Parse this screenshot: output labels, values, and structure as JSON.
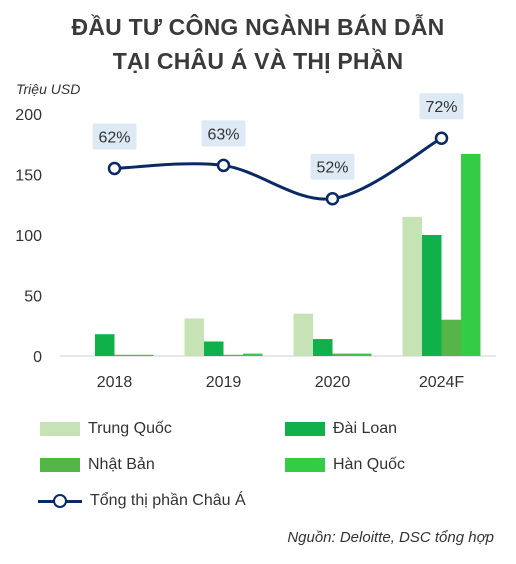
{
  "title_line1": "ĐẦU TƯ CÔNG NGÀNH BÁN DẪN",
  "title_line2": "TẠI CHÂU Á VÀ THỊ PHẦN",
  "source": "Nguồn: Deloitte, DSC tổng hợp",
  "chart_data": {
    "type": "bar",
    "title": "ĐẦU TƯ CÔNG NGÀNH BÁN DẪN TẠI CHÂU Á VÀ THỊ PHẦN",
    "ylabel": "Triệu USD",
    "ylim": [
      0,
      200
    ],
    "yticks": [
      0,
      50,
      100,
      150,
      200
    ],
    "grid": false,
    "legend_position": "bottom",
    "categories": [
      "2018",
      "2019",
      "2020",
      "2024F"
    ],
    "series": [
      {
        "name": "Trung Quốc",
        "type": "bar",
        "color": "#c6e3b5",
        "values": [
          0,
          31,
          35,
          115
        ]
      },
      {
        "name": "Đài Loan",
        "type": "bar",
        "color": "#10b14b",
        "values": [
          18,
          12,
          14,
          100
        ]
      },
      {
        "name": "Nhật Bản",
        "type": "bar",
        "color": "#56b548",
        "values": [
          1,
          1,
          2,
          30
        ]
      },
      {
        "name": "Hàn Quốc",
        "type": "bar",
        "color": "#34cc44",
        "values": [
          1,
          2,
          2,
          167
        ]
      },
      {
        "name": "Tổng thị phần Châu Á",
        "type": "line",
        "color": "#0a2a66",
        "values": [
          62,
          63,
          52,
          72
        ],
        "labels": [
          "62%",
          "63%",
          "52%",
          "72%"
        ]
      }
    ]
  }
}
